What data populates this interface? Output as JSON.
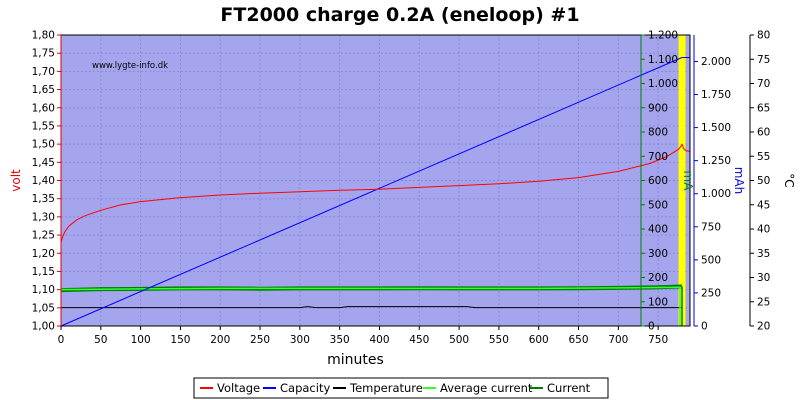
{
  "chart_data": {
    "type": "line",
    "title": "FT2000 charge 0.2A (eneloop) #1",
    "watermark": "www.lygte-info.dk",
    "xlabel": "minutes",
    "xlim": [
      0,
      790
    ],
    "xticks": [
      "0",
      "50",
      "100",
      "150",
      "200",
      "250",
      "300",
      "350",
      "400",
      "450",
      "500",
      "550",
      "600",
      "650",
      "700",
      "750"
    ],
    "axes": {
      "volt": {
        "label": "volt",
        "color": "#e00000",
        "ylim": [
          1.0,
          1.8
        ],
        "ticks": [
          "1,00",
          "1,05",
          "1,10",
          "1,15",
          "1,20",
          "1,25",
          "1,30",
          "1,35",
          "1,40",
          "1,45",
          "1,50",
          "1,55",
          "1,60",
          "1,65",
          "1,70",
          "1,75",
          "1,80"
        ]
      },
      "mA": {
        "label": "mA",
        "color": "#008000",
        "ylim": [
          0,
          1200
        ],
        "ticks": [
          "0",
          "100",
          "200",
          "300",
          "400",
          "500",
          "600",
          "700",
          "800",
          "900",
          "1.000",
          "1.100",
          "1.200"
        ]
      },
      "mAh": {
        "label": "mAh",
        "color": "#0000cc",
        "ylim": [
          0,
          2200
        ],
        "ticks": [
          "0",
          "250",
          "500",
          "750",
          "1.000",
          "1.250",
          "1.500",
          "1.750",
          "2.000"
        ]
      },
      "temp": {
        "label": "°C",
        "color": "#000000",
        "ylim": [
          20,
          80
        ],
        "ticks": [
          "20",
          "25",
          "30",
          "35",
          "40",
          "45",
          "50",
          "55",
          "60",
          "65",
          "70",
          "75",
          "80"
        ]
      }
    },
    "series": [
      {
        "name": "Voltage",
        "color": "#ff0000",
        "axis": "volt",
        "x": [
          0,
          2,
          5,
          10,
          20,
          30,
          50,
          75,
          100,
          150,
          200,
          250,
          300,
          350,
          400,
          450,
          500,
          550,
          600,
          650,
          700,
          740,
          760,
          770,
          775,
          778,
          780,
          782,
          785,
          790
        ],
        "y": [
          1.23,
          1.245,
          1.26,
          1.275,
          1.292,
          1.303,
          1.318,
          1.333,
          1.342,
          1.353,
          1.36,
          1.365,
          1.369,
          1.373,
          1.376,
          1.381,
          1.386,
          1.391,
          1.398,
          1.408,
          1.425,
          1.447,
          1.465,
          1.478,
          1.485,
          1.492,
          1.5,
          1.488,
          1.482,
          1.48
        ]
      },
      {
        "name": "Capacity",
        "color": "#0000ff",
        "axis": "mAh",
        "x": [
          0,
          780,
          790
        ],
        "y": [
          0,
          2030,
          2030
        ]
      },
      {
        "name": "Temperature",
        "color": "#000000",
        "axis": "temp",
        "x": [
          0,
          100,
          200,
          300,
          310,
          320,
          350,
          360,
          400,
          500,
          510,
          520,
          600,
          700,
          780
        ],
        "y": [
          23.8,
          23.8,
          23.8,
          23.8,
          24.0,
          23.8,
          23.8,
          24.0,
          24.0,
          24.0,
          24.0,
          23.8,
          23.8,
          23.8,
          23.8
        ]
      },
      {
        "name": "Average current",
        "color": "#33ff33",
        "axis": "mA",
        "x": [
          0,
          100,
          200,
          300,
          400,
          500,
          600,
          700,
          780
        ],
        "y": [
          150,
          153,
          155,
          155,
          155,
          155,
          155,
          157,
          160
        ]
      },
      {
        "name": "Current",
        "color": "#008000",
        "axis": "mA",
        "x": [
          0,
          50,
          100,
          150,
          200,
          250,
          300,
          350,
          400,
          450,
          500,
          550,
          600,
          650,
          700,
          750,
          780
        ],
        "y": [
          148,
          152,
          153,
          155,
          155,
          154,
          155,
          155,
          155,
          156,
          155,
          155,
          155,
          156,
          157,
          160,
          163
        ]
      }
    ],
    "end_marker": {
      "color": "#ffff00",
      "x": 780
    },
    "legend_position": "bottom-center",
    "grid": true,
    "plot_background": "#a5a5ee"
  }
}
